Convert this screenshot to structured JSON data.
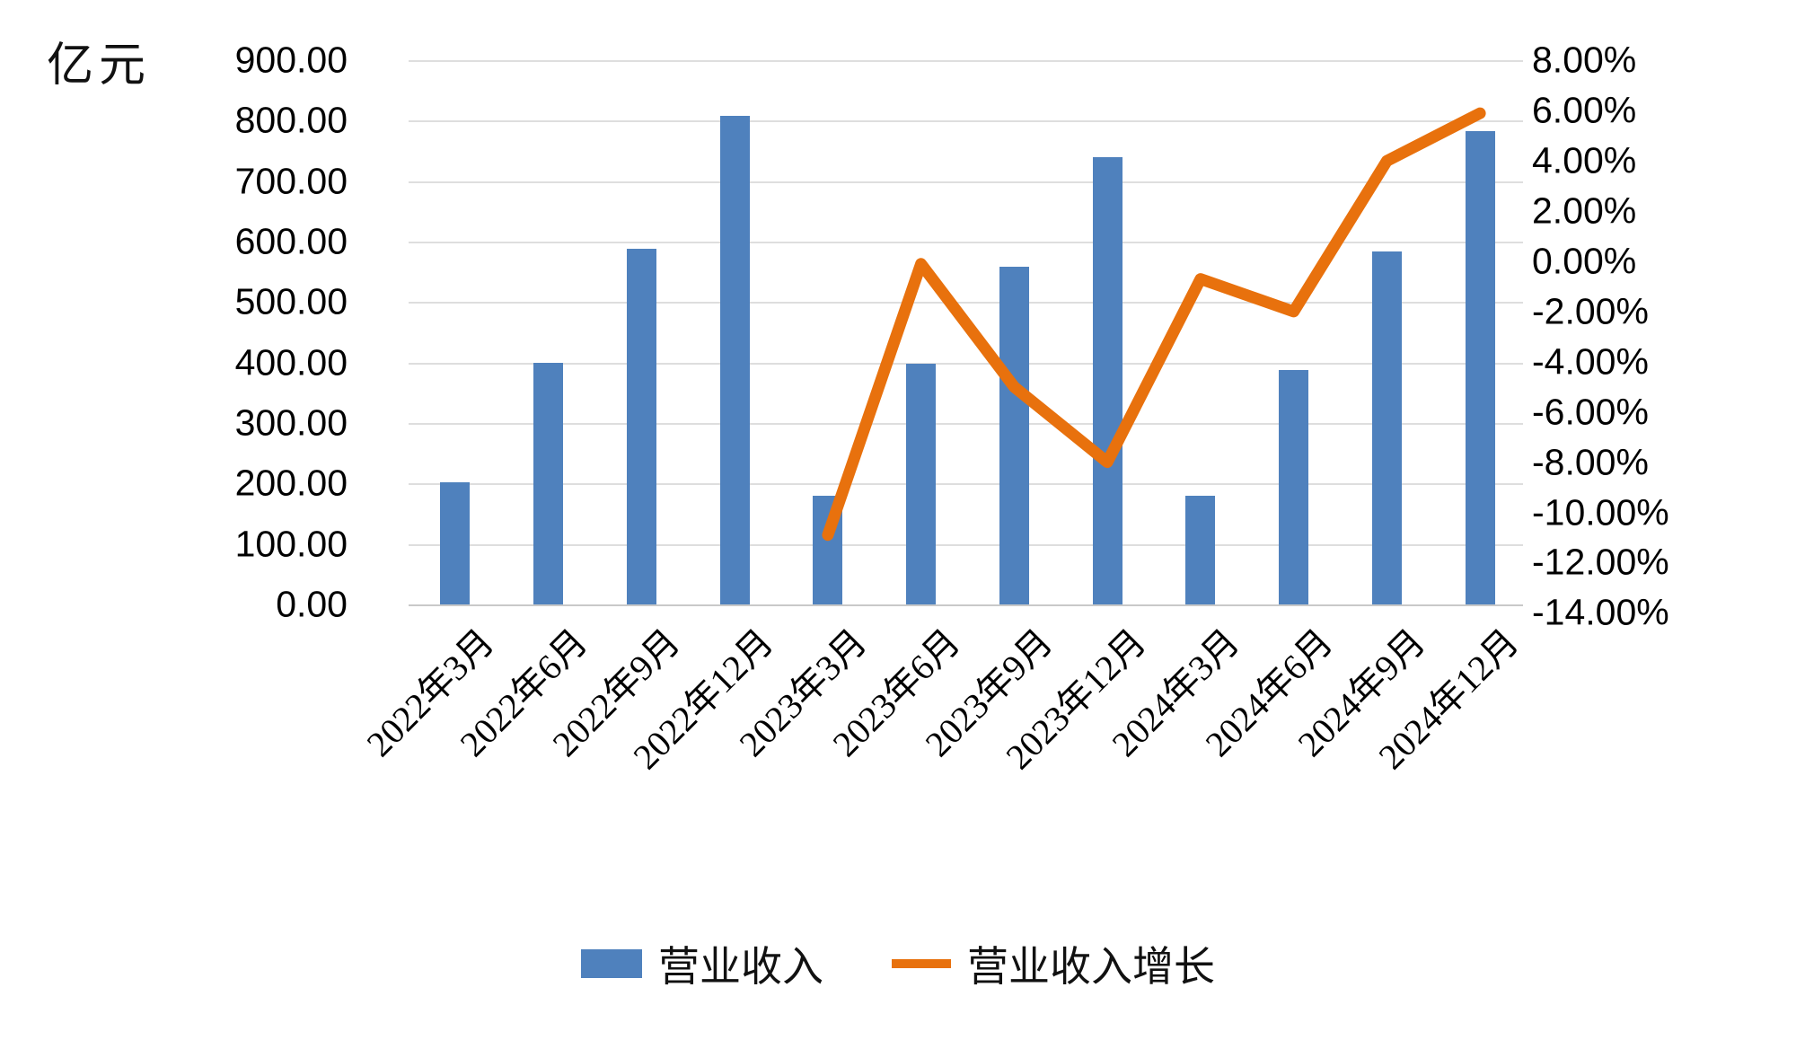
{
  "y_axis_title": "亿元",
  "chart_data": {
    "type": "bar",
    "subtype": "combo-bar-line-dual-axis",
    "categories": [
      "2022年3月",
      "2022年6月",
      "2022年9月",
      "2022年12月",
      "2023年3月",
      "2023年6月",
      "2023年9月",
      "2023年12月",
      "2024年3月",
      "2024年6月",
      "2024年9月",
      "2024年12月"
    ],
    "series": [
      {
        "name": "营业收入",
        "type": "bar",
        "axis": "left",
        "color": "#4F81BD",
        "values": [
          202,
          400,
          588,
          808,
          180,
          398,
          558,
          740,
          179,
          388,
          584,
          783
        ]
      },
      {
        "name": "营业收入增长",
        "type": "line",
        "axis": "right",
        "color": "#E8710D",
        "values_pct": [
          null,
          null,
          null,
          null,
          -10.9,
          -0.1,
          -5.0,
          -8.0,
          -0.7,
          -2.0,
          4.0,
          5.9
        ]
      }
    ],
    "left_axis": {
      "title": "亿元",
      "min": 0,
      "max": 900,
      "step": 100,
      "tick_labels": [
        "900.00",
        "800.00",
        "700.00",
        "600.00",
        "500.00",
        "400.00",
        "300.00",
        "200.00",
        "100.00",
        "0.00"
      ]
    },
    "right_axis": {
      "min": -14,
      "max": 8,
      "step": 2,
      "tick_labels": [
        "8.00%",
        "6.00%",
        "4.00%",
        "2.00%",
        "0.00%",
        "-2.00%",
        "-4.00%",
        "-6.00%",
        "-8.00%",
        "-10.00%",
        "-12.00%",
        "-14.00%"
      ]
    },
    "grid": "horizontal",
    "legend_position": "bottom"
  },
  "legend": {
    "items": [
      {
        "label": "营业收入",
        "swatch": "bar",
        "color": "#4F81BD"
      },
      {
        "label": "营业收入增长",
        "swatch": "line",
        "color": "#E8710D"
      }
    ]
  }
}
